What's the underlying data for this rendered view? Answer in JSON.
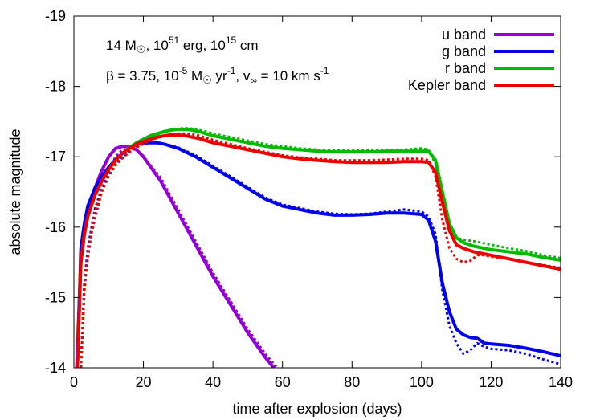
{
  "chart_data": {
    "type": "line",
    "xlabel": "time after explosion (days)",
    "ylabel": "absolute magnitude",
    "xlim": [
      0,
      140
    ],
    "ylim": [
      -14,
      -19
    ],
    "y_reversed": true,
    "xticks": [
      "0",
      "20",
      "40",
      "60",
      "80",
      "100",
      "120",
      "140"
    ],
    "yticks": [
      "-19",
      "-18",
      "-17",
      "-16",
      "-15",
      "-14"
    ],
    "grid": false,
    "legend_position": "top-right",
    "annotations": {
      "line1": {
        "pre": "14 M",
        "sun": "☉",
        "mid1": ", 10",
        "exp1": "51",
        "mid2": " erg, 10",
        "exp2": "15",
        "post": " cm"
      },
      "line2": {
        "beta": "β = 3.75, 10",
        "exp1": "-5",
        "mid1": " M",
        "sun": "☉",
        "mid2": " yr",
        "exp2": "-1",
        "mid3": ", v",
        "inf": "∞",
        "mid4": " = 10 km s",
        "exp3": "-1"
      }
    },
    "series": [
      {
        "name": "u band",
        "color": "#9400d3",
        "style": "solid",
        "x": [
          0.8,
          1.5,
          2,
          3,
          4,
          5,
          6,
          8,
          10,
          12,
          14,
          16,
          18,
          20,
          25,
          30,
          35,
          40,
          45,
          50,
          55,
          57.5
        ],
        "y": [
          -14,
          -14.9,
          -15.5,
          -15.95,
          -16.2,
          -16.4,
          -16.55,
          -16.8,
          -17.0,
          -17.12,
          -17.15,
          -17.15,
          -17.1,
          -17.0,
          -16.65,
          -16.2,
          -15.75,
          -15.3,
          -14.9,
          -14.5,
          -14.15,
          -14.0
        ]
      },
      {
        "name": "u band (dotted)",
        "color": "#9400d3",
        "style": "dotted",
        "x": [
          2,
          3,
          5,
          8,
          10,
          12,
          14,
          16,
          18,
          20,
          25,
          30,
          35,
          40,
          45,
          50,
          55,
          58.5
        ],
        "y": [
          -14,
          -15.2,
          -15.9,
          -16.5,
          -16.8,
          -17.0,
          -17.1,
          -17.12,
          -17.1,
          -17.0,
          -16.7,
          -16.25,
          -15.8,
          -15.35,
          -14.95,
          -14.55,
          -14.2,
          -14.0
        ]
      },
      {
        "name": "g band",
        "color": "#0000ee",
        "style": "solid",
        "x": [
          1,
          2,
          3,
          4,
          6,
          8,
          10,
          12,
          14,
          16,
          18,
          20,
          22,
          24,
          26,
          28,
          30,
          35,
          40,
          45,
          50,
          55,
          60,
          65,
          70,
          75,
          80,
          85,
          90,
          95,
          100,
          102,
          104,
          106,
          108,
          110,
          112,
          114,
          116,
          118,
          120,
          125,
          130,
          135,
          140
        ],
        "y": [
          -14,
          -15.7,
          -16.05,
          -16.3,
          -16.55,
          -16.72,
          -16.85,
          -16.96,
          -17.05,
          -17.12,
          -17.18,
          -17.2,
          -17.2,
          -17.2,
          -17.18,
          -17.15,
          -17.12,
          -17.0,
          -16.85,
          -16.7,
          -16.55,
          -16.4,
          -16.3,
          -16.25,
          -16.2,
          -16.17,
          -16.17,
          -16.18,
          -16.2,
          -16.2,
          -16.18,
          -16.1,
          -15.8,
          -15.2,
          -14.8,
          -14.55,
          -14.47,
          -14.43,
          -14.42,
          -14.35,
          -14.34,
          -14.32,
          -14.28,
          -14.23,
          -14.17
        ]
      },
      {
        "name": "g band (dotted)",
        "color": "#0000ee",
        "style": "dotted",
        "x": [
          2,
          3,
          4,
          6,
          8,
          10,
          12,
          14,
          16,
          18,
          20,
          22,
          24,
          26,
          28,
          30,
          35,
          40,
          45,
          50,
          55,
          60,
          65,
          70,
          75,
          80,
          85,
          90,
          95,
          100,
          102,
          104,
          106,
          108,
          110,
          112,
          114,
          116,
          118,
          120,
          125,
          130,
          135,
          140
        ],
        "y": [
          -14,
          -15.2,
          -15.7,
          -16.25,
          -16.55,
          -16.75,
          -16.9,
          -17.0,
          -17.08,
          -17.15,
          -17.18,
          -17.2,
          -17.2,
          -17.18,
          -17.16,
          -17.13,
          -17.02,
          -16.87,
          -16.72,
          -16.57,
          -16.42,
          -16.32,
          -16.27,
          -16.22,
          -16.19,
          -16.18,
          -16.19,
          -16.22,
          -16.25,
          -16.22,
          -16.15,
          -15.9,
          -15.1,
          -14.6,
          -14.35,
          -14.2,
          -14.25,
          -14.35,
          -14.3,
          -14.27,
          -14.25,
          -14.2,
          -14.12,
          -14.05
        ]
      },
      {
        "name": "r band",
        "color": "#00bb00",
        "style": "solid",
        "x": [
          1,
          2,
          3,
          4,
          6,
          8,
          10,
          12,
          14,
          16,
          18,
          20,
          22,
          24,
          26,
          28,
          30,
          32,
          34,
          36,
          38,
          40,
          45,
          50,
          55,
          60,
          65,
          70,
          75,
          80,
          85,
          90,
          95,
          100,
          102,
          104,
          106,
          108,
          110,
          112,
          115,
          120,
          125,
          130,
          135,
          140
        ],
        "y": [
          -14,
          -15.5,
          -15.9,
          -16.15,
          -16.45,
          -16.65,
          -16.82,
          -16.95,
          -17.05,
          -17.13,
          -17.2,
          -17.25,
          -17.3,
          -17.33,
          -17.36,
          -17.38,
          -17.39,
          -17.39,
          -17.38,
          -17.36,
          -17.33,
          -17.3,
          -17.25,
          -17.2,
          -17.15,
          -17.12,
          -17.1,
          -17.08,
          -17.07,
          -17.07,
          -17.07,
          -17.08,
          -17.08,
          -17.08,
          -17.08,
          -16.95,
          -16.5,
          -16.05,
          -15.85,
          -15.78,
          -15.73,
          -15.68,
          -15.65,
          -15.62,
          -15.57,
          -15.53
        ]
      },
      {
        "name": "r band (dotted)",
        "color": "#00bb00",
        "style": "dotted",
        "x": [
          2,
          3,
          4,
          6,
          8,
          10,
          12,
          14,
          16,
          18,
          20,
          22,
          24,
          26,
          28,
          30,
          32,
          34,
          36,
          38,
          40,
          45,
          50,
          55,
          60,
          65,
          70,
          75,
          80,
          85,
          90,
          95,
          100,
          102,
          104,
          106,
          108,
          110,
          112,
          115,
          120,
          125,
          130,
          135,
          140
        ],
        "y": [
          -14,
          -15.1,
          -15.6,
          -16.2,
          -16.5,
          -16.72,
          -16.88,
          -16.98,
          -17.08,
          -17.15,
          -17.22,
          -17.28,
          -17.32,
          -17.35,
          -17.38,
          -17.4,
          -17.41,
          -17.4,
          -17.38,
          -17.36,
          -17.33,
          -17.28,
          -17.23,
          -17.18,
          -17.15,
          -17.12,
          -17.1,
          -17.09,
          -17.09,
          -17.1,
          -17.1,
          -17.1,
          -17.12,
          -17.1,
          -16.9,
          -16.35,
          -15.95,
          -15.85,
          -15.82,
          -15.8,
          -15.75,
          -15.7,
          -15.66,
          -15.6,
          -15.56
        ]
      },
      {
        "name": "Kepler band",
        "color": "#ee0000",
        "style": "solid",
        "x": [
          1,
          2,
          3,
          4,
          6,
          8,
          10,
          12,
          14,
          16,
          18,
          20,
          22,
          24,
          26,
          28,
          30,
          32,
          34,
          36,
          38,
          40,
          45,
          50,
          55,
          60,
          65,
          70,
          75,
          80,
          85,
          90,
          95,
          100,
          102,
          104,
          106,
          108,
          110,
          112,
          115,
          120,
          125,
          130,
          135,
          140
        ],
        "y": [
          -14,
          -15.5,
          -15.9,
          -16.15,
          -16.45,
          -16.65,
          -16.82,
          -16.95,
          -17.05,
          -17.12,
          -17.18,
          -17.22,
          -17.25,
          -17.28,
          -17.3,
          -17.31,
          -17.31,
          -17.3,
          -17.28,
          -17.26,
          -17.23,
          -17.2,
          -17.15,
          -17.1,
          -17.05,
          -17.0,
          -16.97,
          -16.95,
          -16.93,
          -16.92,
          -16.92,
          -16.92,
          -16.93,
          -16.93,
          -16.92,
          -16.78,
          -16.35,
          -15.95,
          -15.75,
          -15.7,
          -15.65,
          -15.6,
          -15.55,
          -15.5,
          -15.45,
          -15.4
        ]
      },
      {
        "name": "Kepler band (dotted)",
        "color": "#ee0000",
        "style": "dotted",
        "x": [
          2,
          3,
          4,
          6,
          8,
          10,
          12,
          14,
          16,
          18,
          20,
          22,
          24,
          26,
          28,
          30,
          32,
          34,
          36,
          38,
          40,
          45,
          50,
          55,
          60,
          65,
          70,
          75,
          80,
          85,
          90,
          95,
          100,
          102,
          104,
          106,
          108,
          110,
          112,
          114,
          116,
          118,
          120,
          125,
          130,
          135,
          140
        ],
        "y": [
          -14,
          -15.1,
          -15.6,
          -16.2,
          -16.5,
          -16.72,
          -16.88,
          -16.98,
          -17.07,
          -17.13,
          -17.19,
          -17.23,
          -17.27,
          -17.3,
          -17.32,
          -17.33,
          -17.33,
          -17.32,
          -17.3,
          -17.27,
          -17.24,
          -17.18,
          -17.12,
          -17.07,
          -17.02,
          -16.99,
          -16.97,
          -16.95,
          -16.95,
          -16.95,
          -16.96,
          -16.97,
          -16.97,
          -16.95,
          -16.72,
          -16.1,
          -15.7,
          -15.55,
          -15.5,
          -15.52,
          -15.6,
          -15.6,
          -15.58,
          -15.55,
          -15.5,
          -15.46,
          -15.42
        ]
      }
    ],
    "legend": [
      {
        "label": "u band",
        "color": "#9400d3"
      },
      {
        "label": "g band",
        "color": "#0000ee"
      },
      {
        "label": "r band",
        "color": "#00bb00"
      },
      {
        "label": "Kepler band",
        "color": "#ee0000"
      }
    ]
  }
}
